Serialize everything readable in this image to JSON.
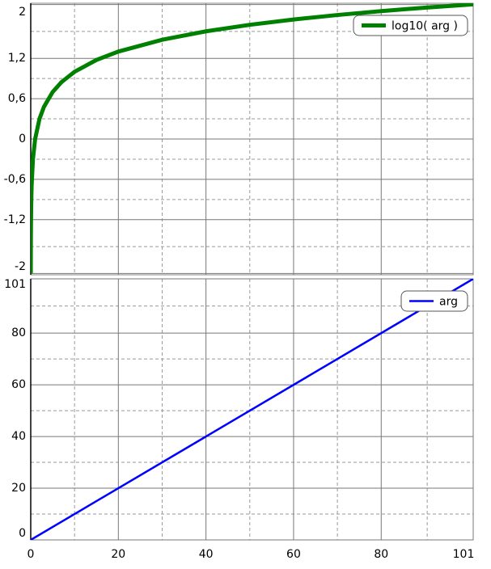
{
  "chart_data": [
    {
      "type": "line",
      "grid": true,
      "legend": "upper right",
      "xlim": [
        0,
        101
      ],
      "ylim": [
        -2.02,
        2.02
      ],
      "yticks": [
        -2,
        {
          "value": -1.2,
          "label": "-1,2"
        },
        {
          "value": -0.6,
          "label": "-0,6"
        },
        0,
        {
          "value": 0.6,
          "label": "0,6"
        },
        {
          "value": 1.2,
          "label": "1,2"
        },
        2
      ],
      "series": [
        {
          "name": "log10( arg )",
          "color": "#008000",
          "x": [
            0.01,
            0.02,
            0.03,
            0.05,
            0.1,
            0.2,
            0.5,
            1,
            2,
            3,
            5,
            7,
            10,
            15,
            20,
            30,
            40,
            50,
            60,
            70,
            80,
            90,
            101
          ],
          "values": [
            -2,
            -1.699,
            -1.523,
            -1.301,
            -1,
            -0.699,
            -0.301,
            0,
            0.301,
            0.477,
            0.699,
            0.845,
            1,
            1.176,
            1.301,
            1.477,
            1.602,
            1.699,
            1.778,
            1.845,
            1.903,
            1.954,
            2.004
          ]
        }
      ]
    },
    {
      "type": "line",
      "grid": true,
      "legend": "upper right",
      "xlim": [
        0,
        101
      ],
      "ylim": [
        0,
        101
      ],
      "xticks": [
        0,
        20,
        40,
        60,
        80,
        101
      ],
      "yticks": [
        0,
        20,
        40,
        60,
        80,
        101
      ],
      "series": [
        {
          "name": "arg",
          "color": "#0000ff",
          "x": [
            0,
            101
          ],
          "values": [
            0,
            101
          ]
        }
      ]
    }
  ]
}
